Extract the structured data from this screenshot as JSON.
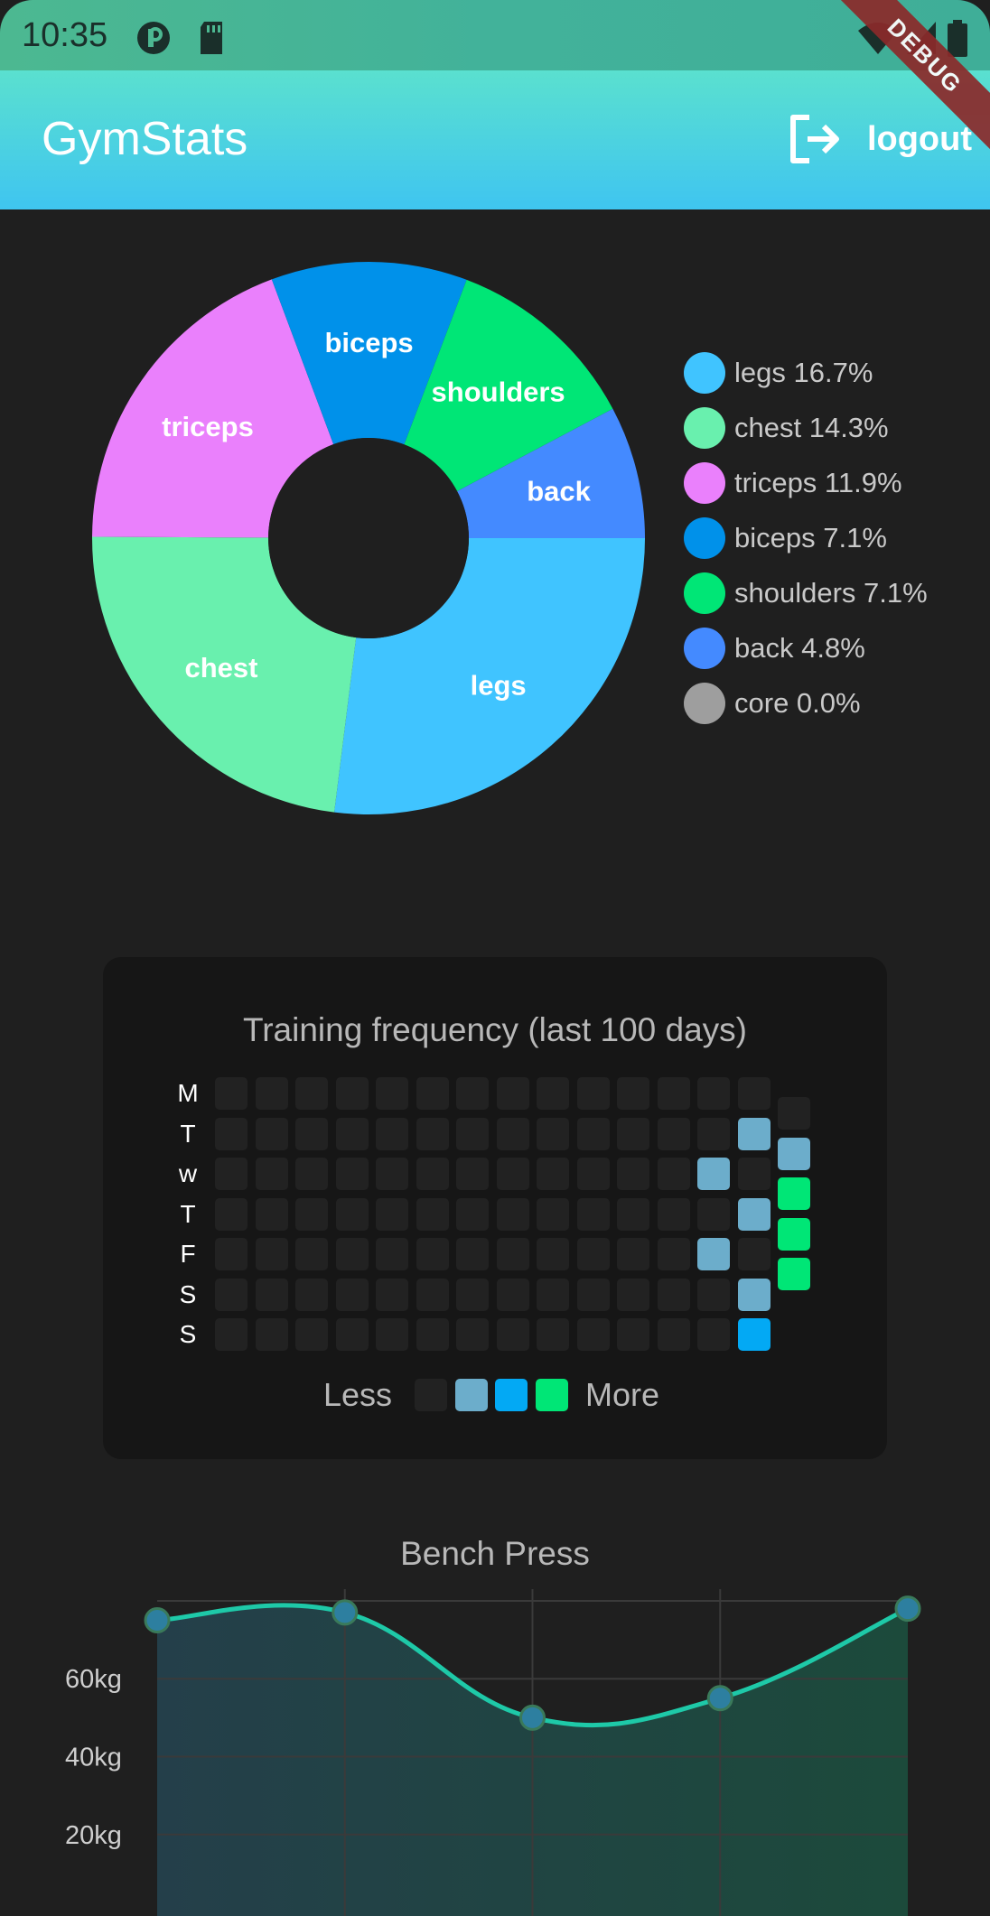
{
  "status_bar": {
    "time": "10:35",
    "debug_label": "DEBUG"
  },
  "app_bar": {
    "title": "GymStats",
    "logout_label": "logout"
  },
  "chart_data": [
    {
      "type": "pie",
      "title": "",
      "slices": [
        {
          "name": "legs",
          "value": 16.7,
          "label": "legs",
          "color": "#40c4ff"
        },
        {
          "name": "chest",
          "value": 14.3,
          "label": "chest",
          "color": "#69f0ae"
        },
        {
          "name": "triceps",
          "value": 11.9,
          "label": "triceps",
          "color": "#ea80fc"
        },
        {
          "name": "biceps",
          "value": 7.1,
          "label": "biceps",
          "color": "#0091ea"
        },
        {
          "name": "shoulders",
          "value": 7.1,
          "label": "shoulders",
          "color": "#00e676"
        },
        {
          "name": "back",
          "value": 4.8,
          "label": "back",
          "color": "#448aff"
        },
        {
          "name": "core",
          "value": 0.0,
          "label": "core",
          "color": "#9e9e9e"
        }
      ],
      "legend": [
        {
          "text": "legs 16.7%",
          "color": "#40c4ff"
        },
        {
          "text": "chest 14.3%",
          "color": "#69f0ae"
        },
        {
          "text": "triceps 11.9%",
          "color": "#ea80fc"
        },
        {
          "text": "biceps 7.1%",
          "color": "#0091ea"
        },
        {
          "text": "shoulders 7.1%",
          "color": "#00e676"
        },
        {
          "text": "back 4.8%",
          "color": "#448aff"
        },
        {
          "text": "core 0.0%",
          "color": "#9e9e9e"
        }
      ],
      "legend_position": "right"
    },
    {
      "type": "heatmap",
      "title": "Training frequency (last 100 days)",
      "rows": [
        "M",
        "T",
        "w",
        "T",
        "F",
        "S",
        "S"
      ],
      "levels": [
        0,
        0,
        0,
        0,
        0,
        0,
        0,
        0,
        0,
        0,
        0,
        0,
        0,
        0,
        0,
        0,
        0,
        0,
        0,
        0,
        0,
        0,
        0,
        0,
        0,
        0,
        0,
        0,
        1,
        1,
        0,
        0,
        0,
        0,
        0,
        0,
        0,
        0,
        0,
        0,
        0,
        0,
        1,
        0,
        3,
        0,
        0,
        0,
        0,
        0,
        0,
        0,
        0,
        0,
        0,
        0,
        0,
        0,
        1,
        3,
        0,
        0,
        0,
        0,
        0,
        0,
        0,
        0,
        0,
        0,
        0,
        0,
        1,
        0,
        3,
        0,
        0,
        0,
        0,
        0,
        0,
        0,
        0,
        0,
        0,
        0,
        0,
        0,
        1,
        -1,
        0,
        0,
        0,
        0,
        0,
        0,
        0,
        0,
        0,
        0,
        0,
        0,
        0,
        2,
        -1
      ],
      "level_colors": [
        "#222222",
        "#6cadcb",
        "#03a9f4",
        "#00e676"
      ],
      "legend": {
        "less": "Less",
        "more": "More"
      }
    },
    {
      "type": "line",
      "title": "Bench Press",
      "x": [
        1,
        2,
        3,
        4,
        5
      ],
      "y": [
        75,
        77,
        50,
        55,
        78
      ],
      "yticks": [
        "20kg",
        "40kg",
        "60kg"
      ],
      "ytick_values": [
        20,
        40,
        60
      ],
      "ylim": [
        13,
        83
      ],
      "grid": true,
      "line_color": "#1ec9a8",
      "marker_color": "#2d7fa0"
    }
  ]
}
